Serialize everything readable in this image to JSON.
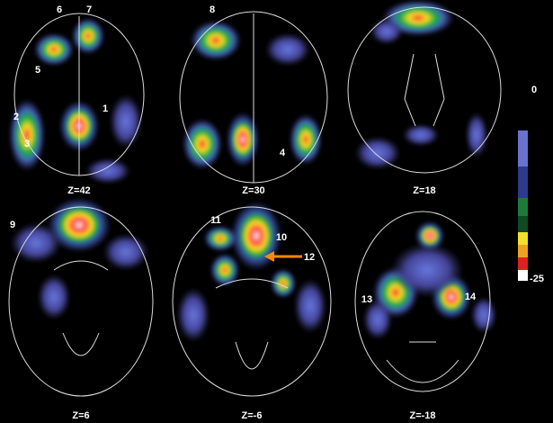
{
  "panels": [
    {
      "slice": "Z=42",
      "markers": [
        "6",
        "7",
        "5",
        "2",
        "1",
        "3"
      ]
    },
    {
      "slice": "Z=30",
      "markers": [
        "8",
        "4"
      ]
    },
    {
      "slice": "Z=18",
      "markers": []
    },
    {
      "slice": "Z=6",
      "markers": [
        "9"
      ]
    },
    {
      "slice": "Z=-6",
      "markers": [
        "11",
        "10",
        "12"
      ]
    },
    {
      "slice": "Z=-18",
      "markers": [
        "13",
        "14"
      ]
    }
  ],
  "colorbar": {
    "top_label": "0",
    "bottom_label": "-25"
  }
}
